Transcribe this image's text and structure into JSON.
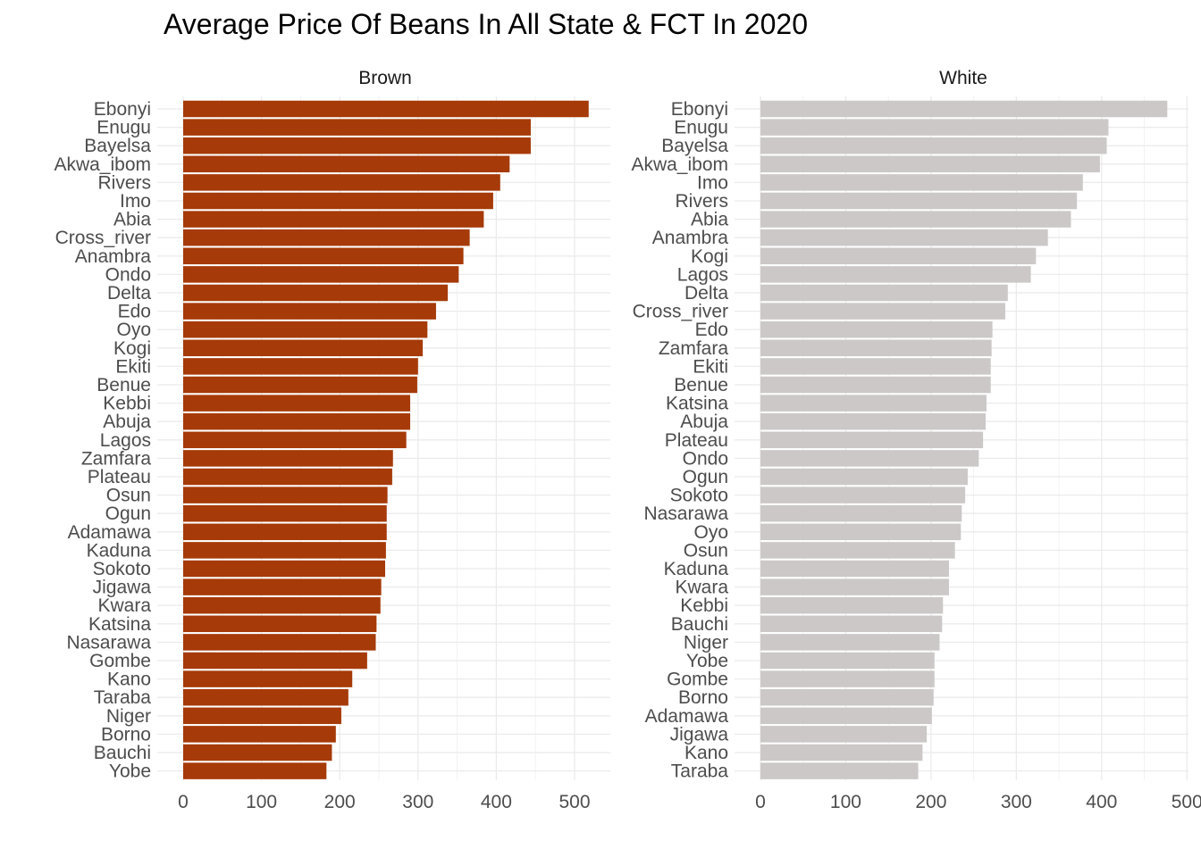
{
  "chart_data": {
    "type": "bar",
    "orientation": "horizontal",
    "title": "Average Price Of Beans In All State & FCT In 2020",
    "xlabel": "",
    "ylabel": "",
    "xlim": [
      0,
      520
    ],
    "xticks": [
      0,
      100,
      200,
      300,
      400,
      500
    ],
    "grid": true,
    "panels": [
      {
        "name": "Brown",
        "color": "#A63A08",
        "categories": [
          "Ebonyi",
          "Enugu",
          "Bayelsa",
          "Akwa_ibom",
          "Rivers",
          "Imo",
          "Abia",
          "Cross_river",
          "Anambra",
          "Ondo",
          "Delta",
          "Edo",
          "Oyo",
          "Kogi",
          "Ekiti",
          "Benue",
          "Kebbi",
          "Abuja",
          "Lagos",
          "Zamfara",
          "Plateau",
          "Osun",
          "Ogun",
          "Adamawa",
          "Kaduna",
          "Sokoto",
          "Jigawa",
          "Kwara",
          "Katsina",
          "Nasarawa",
          "Gombe",
          "Kano",
          "Taraba",
          "Niger",
          "Borno",
          "Bauchi",
          "Yobe"
        ],
        "values": [
          518,
          444,
          444,
          417,
          405,
          396,
          384,
          366,
          358,
          352,
          338,
          323,
          312,
          306,
          300,
          299,
          290,
          290,
          285,
          268,
          267,
          261,
          260,
          260,
          259,
          258,
          253,
          252,
          247,
          246,
          235,
          216,
          211,
          202,
          195,
          190,
          183
        ]
      },
      {
        "name": "White",
        "color": "#CCC8C8",
        "categories": [
          "Ebonyi",
          "Enugu",
          "Bayelsa",
          "Akwa_ibom",
          "Imo",
          "Rivers",
          "Abia",
          "Anambra",
          "Kogi",
          "Lagos",
          "Delta",
          "Cross_river",
          "Edo",
          "Zamfara",
          "Ekiti",
          "Benue",
          "Katsina",
          "Abuja",
          "Plateau",
          "Ondo",
          "Ogun",
          "Sokoto",
          "Nasarawa",
          "Oyo",
          "Osun",
          "Kaduna",
          "Kwara",
          "Kebbi",
          "Bauchi",
          "Niger",
          "Yobe",
          "Gombe",
          "Borno",
          "Adamawa",
          "Jigawa",
          "Kano",
          "Taraba"
        ],
        "values": [
          477,
          408,
          406,
          398,
          378,
          371,
          364,
          337,
          323,
          317,
          290,
          287,
          272,
          271,
          270,
          270,
          265,
          264,
          261,
          256,
          243,
          240,
          236,
          235,
          228,
          221,
          221,
          214,
          213,
          210,
          204,
          204,
          203,
          201,
          195,
          190,
          185
        ]
      }
    ]
  }
}
